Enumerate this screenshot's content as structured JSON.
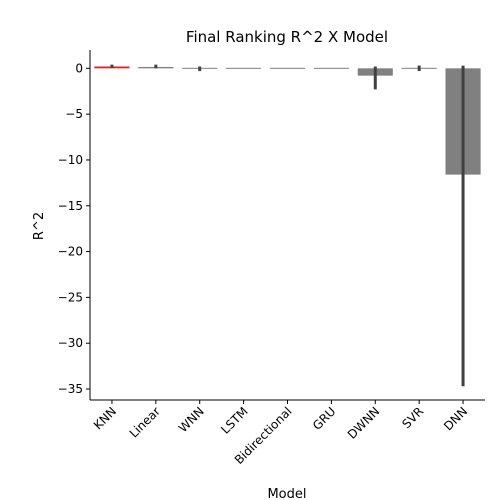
{
  "chart_data": {
    "type": "bar",
    "title": "Final Ranking R^2 X Model",
    "xlabel": "Model",
    "ylabel": "R^2",
    "categories": [
      "KNN",
      "Linear",
      "WNN",
      "LSTM",
      "Bidirectional",
      "GRU",
      "DWNN",
      "SVR",
      "DNN"
    ],
    "values": [
      0.2,
      0.15,
      0.05,
      0.0,
      0.0,
      0.0,
      -0.8,
      0.0,
      -11.6
    ],
    "error_low": [
      0.05,
      0.0,
      -0.3,
      0.0,
      0.0,
      0.0,
      -2.3,
      -0.3,
      -34.7
    ],
    "error_high": [
      0.4,
      0.4,
      0.2,
      0.0,
      0.0,
      0.0,
      0.2,
      0.3,
      0.3
    ],
    "colors": [
      "#d62728",
      "#808080",
      "#808080",
      "#808080",
      "#808080",
      "#808080",
      "#808080",
      "#808080",
      "#808080"
    ],
    "error_color": "#404040",
    "ylim": [
      -36.2,
      2.0
    ],
    "yticks": [
      0,
      -5,
      -10,
      -15,
      -20,
      -25,
      -30,
      -35
    ],
    "ytick_labels": [
      "0",
      "−5",
      "−10",
      "−15",
      "−20",
      "−25",
      "−30",
      "−35"
    ],
    "xtick_rotation": -45,
    "grid": false,
    "legend": "none"
  }
}
